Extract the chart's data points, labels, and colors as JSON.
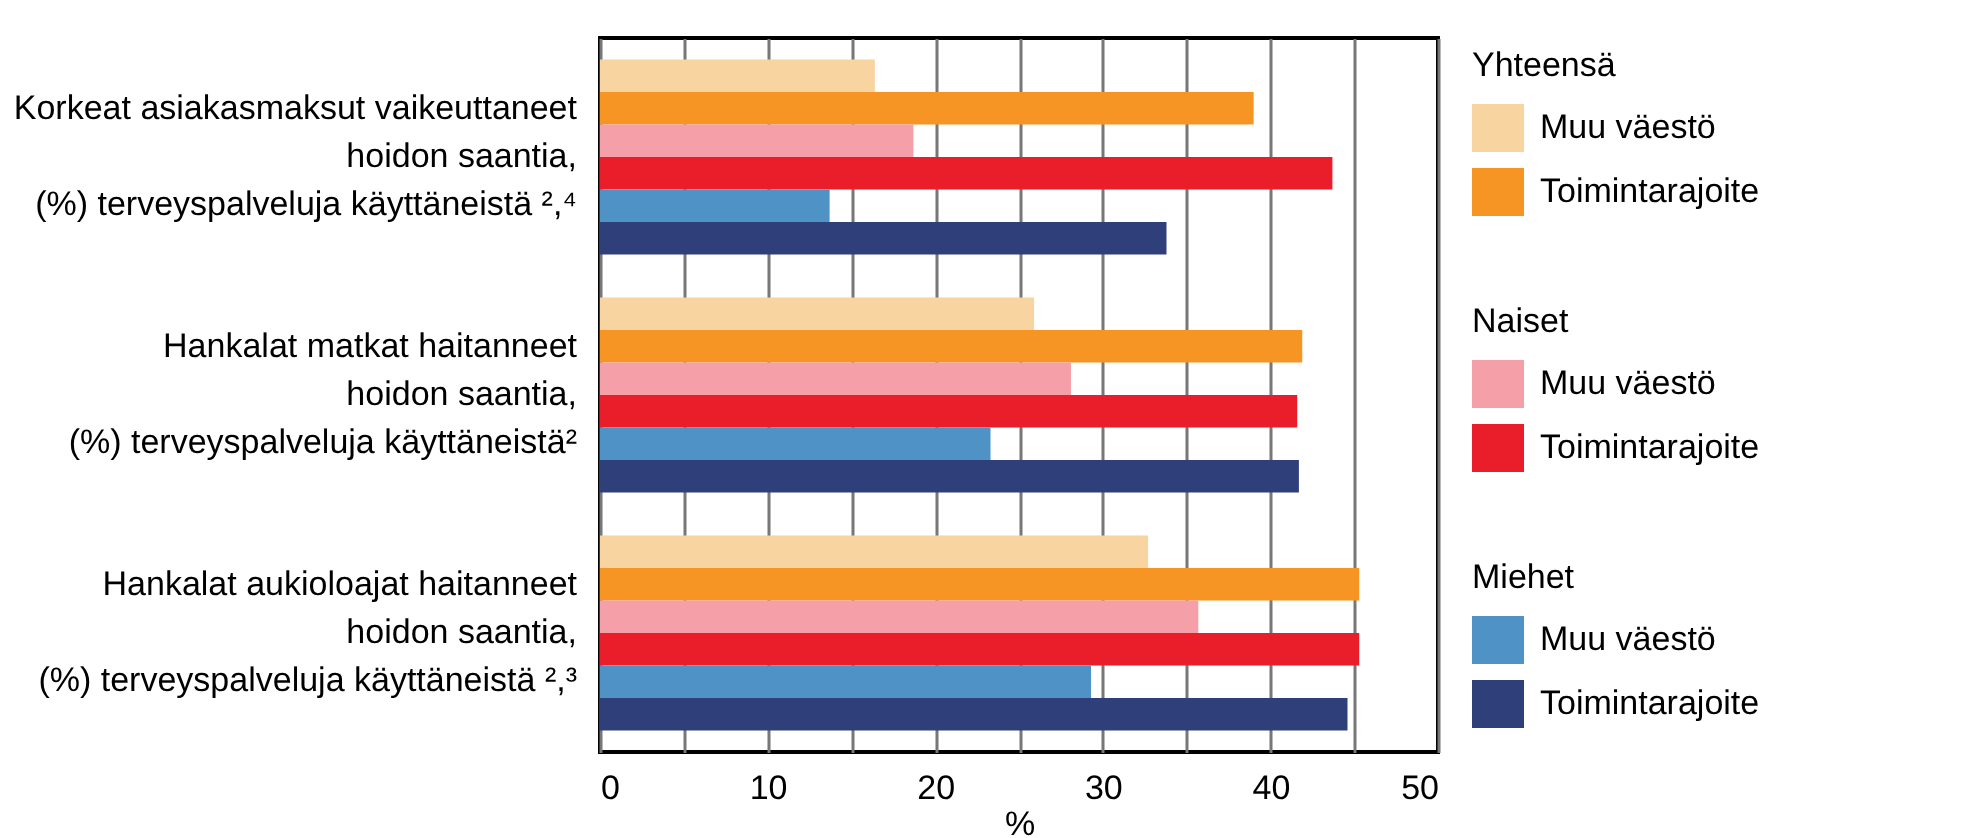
{
  "chart_data": {
    "type": "bar",
    "orientation": "horizontal",
    "categories": [
      "Korkeat asiakasmaksut vaikeuttaneet\nhoidon saantia,\n(%) terveyspalveluja käyttäneistä ²,⁴",
      "Hankalat matkat haitanneet\nhoidon saantia,\n(%) terveyspalveluja käyttäneistä²",
      "Hankalat aukioloajat haitanneet\nhoidon saantia,\n(%) terveyspalveluja käyttäneistä ²,³"
    ],
    "series": [
      {
        "name": "Muu väestö",
        "color": "#f8d4a0",
        "values": [
          16.4,
          25.9,
          32.7
        ]
      },
      {
        "name": "Toimintarajoite",
        "color": "#f79524",
        "values": [
          39.0,
          41.9,
          45.3
        ]
      },
      {
        "name": "Muu väestö",
        "color": "#f5a0a8",
        "values": [
          18.7,
          28.1,
          35.7
        ]
      },
      {
        "name": "Toimintarajoite",
        "color": "#e91e2a",
        "values": [
          43.7,
          41.6,
          45.3
        ]
      },
      {
        "name": "Muu väestö",
        "color": "#4f93c6",
        "values": [
          13.7,
          23.3,
          29.3
        ]
      },
      {
        "name": "Toimintarajoite",
        "color": "#2e3f7a",
        "values": [
          33.8,
          41.7,
          44.6
        ]
      }
    ],
    "annotations": [
      "Yhteensä",
      "Naiset",
      "Miehet"
    ],
    "xlabel": "%",
    "xlim": [
      0,
      50
    ],
    "xticks": [
      0,
      {
        "value": 5,
        "label": null
      },
      10,
      {
        "value": 15,
        "label": null
      },
      20,
      {
        "value": 25,
        "label": null
      },
      30,
      {
        "value": 35,
        "label": null
      },
      40,
      {
        "value": 45,
        "label": null
      },
      50
    ],
    "grid": "x",
    "legend": "right"
  }
}
